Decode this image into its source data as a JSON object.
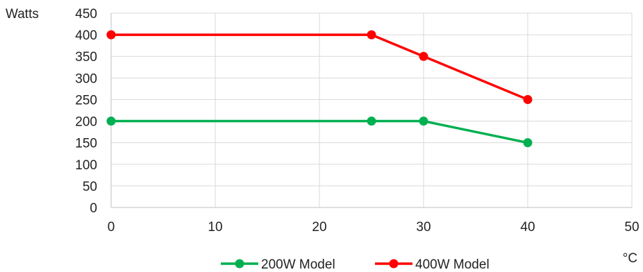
{
  "chart_data": {
    "type": "line",
    "ylabel": "Watts",
    "xlabel": "°C",
    "xlim": [
      0,
      50
    ],
    "ylim": [
      0,
      450
    ],
    "x_ticks": [
      "0",
      "10",
      "20",
      "30",
      "40",
      "50"
    ],
    "y_ticks": [
      "0",
      "50",
      "100",
      "150",
      "200",
      "250",
      "300",
      "350",
      "400",
      "450"
    ],
    "grid": true,
    "legend_position": "bottom",
    "series": [
      {
        "name": "200W Model",
        "color": "#00b050",
        "x": [
          0,
          25,
          30,
          40
        ],
        "y": [
          200,
          200,
          200,
          150
        ]
      },
      {
        "name": "400W Model",
        "color": "#ff0000",
        "x": [
          0,
          25,
          30,
          40
        ],
        "y": [
          400,
          400,
          350,
          250
        ]
      }
    ]
  }
}
